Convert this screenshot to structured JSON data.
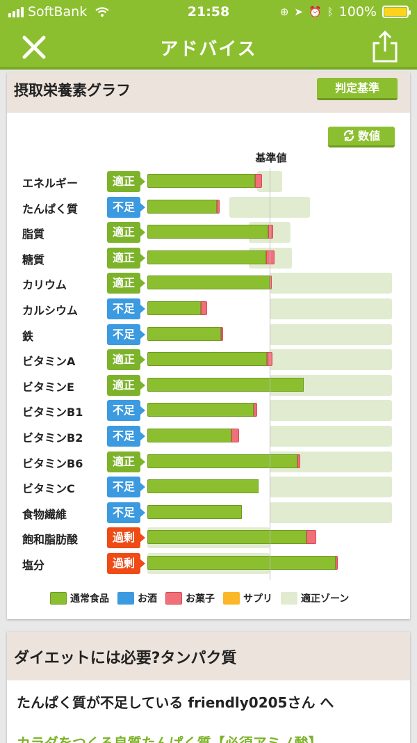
{
  "status_bar": {
    "carrier": "SoftBank",
    "time": "21:58",
    "battery": "100%"
  },
  "nav": {
    "title": "アドバイス"
  },
  "graph_card": {
    "title": "摂取栄養素グラフ",
    "judge_button": "判定基準",
    "value_button": "数値",
    "reference_label": "基準値"
  },
  "colors": {
    "food": "#8cbf2f",
    "alcohol": "#3b9ae0",
    "snack": "#f0707a",
    "supplement": "#fbb728",
    "zone": "#e1ebd0"
  },
  "chart_data": {
    "type": "bar",
    "orientation": "horizontal",
    "unit": "fraction of reference value (1.0 = 基準値)",
    "rows": [
      {
        "name": "エネルギー",
        "status": "適正",
        "status_type": "ok",
        "food": 0.88,
        "snack": 0.06,
        "zone": [
          0.9,
          1.1
        ]
      },
      {
        "name": "たんぱく質",
        "status": "不足",
        "status_type": "low",
        "food": 0.57,
        "snack": 0.02,
        "zone": [
          0.67,
          1.33
        ]
      },
      {
        "name": "脂質",
        "status": "適正",
        "status_type": "ok",
        "food": 0.99,
        "snack": 0.04,
        "zone": [
          0.83,
          1.17
        ]
      },
      {
        "name": "糖質",
        "status": "適正",
        "status_type": "ok",
        "food": 0.97,
        "snack": 0.07,
        "zone": [
          0.83,
          1.18
        ]
      },
      {
        "name": "カリウム",
        "status": "適正",
        "status_type": "ok",
        "food": 1.0,
        "snack": 0.01,
        "zone": [
          1.0,
          2.0
        ]
      },
      {
        "name": "カルシウム",
        "status": "不足",
        "status_type": "low",
        "food": 0.44,
        "snack": 0.05,
        "zone": [
          1.0,
          2.0
        ]
      },
      {
        "name": "鉄",
        "status": "不足",
        "status_type": "low",
        "food": 0.6,
        "snack": 0.02,
        "zone": [
          1.0,
          2.0
        ]
      },
      {
        "name": "ビタミンA",
        "status": "適正",
        "status_type": "ok",
        "food": 0.98,
        "snack": 0.04,
        "zone": [
          1.0,
          2.0
        ]
      },
      {
        "name": "ビタミンE",
        "status": "適正",
        "status_type": "ok",
        "food": 1.28,
        "snack": 0.0,
        "zone": [
          1.0,
          2.0
        ]
      },
      {
        "name": "ビタミンB1",
        "status": "不足",
        "status_type": "low",
        "food": 0.87,
        "snack": 0.03,
        "zone": [
          1.0,
          2.0
        ]
      },
      {
        "name": "ビタミンB2",
        "status": "不足",
        "status_type": "low",
        "food": 0.69,
        "snack": 0.06,
        "zone": [
          1.0,
          2.0
        ]
      },
      {
        "name": "ビタミンB6",
        "status": "適正",
        "status_type": "ok",
        "food": 1.23,
        "snack": 0.02,
        "zone": [
          1.0,
          2.0
        ]
      },
      {
        "name": "ビタミンC",
        "status": "不足",
        "status_type": "low",
        "food": 0.91,
        "snack": 0.0,
        "zone": [
          1.0,
          2.0
        ]
      },
      {
        "name": "食物繊維",
        "status": "不足",
        "status_type": "low",
        "food": 0.77,
        "snack": 0.0,
        "zone": [
          1.0,
          2.0
        ]
      },
      {
        "name": "飽和脂肪酸",
        "status": "過剰",
        "status_type": "over",
        "food": 1.3,
        "snack": 0.08,
        "zone": [
          0.0,
          1.0
        ]
      },
      {
        "name": "塩分",
        "status": "過剰",
        "status_type": "over",
        "food": 1.54,
        "snack": 0.01,
        "zone": [
          0.0,
          1.0
        ]
      }
    ],
    "legend": [
      "通常食品",
      "お酒",
      "お菓子",
      "サプリ",
      "適正ゾーン"
    ]
  },
  "article_card": {
    "title": "ダイエットには必要?タンパク質",
    "line1": "たんぱく質が不足している friendly0205さん へ",
    "line2": "カラダをつくる良質たんぱく質【必須アミノ酸】"
  }
}
